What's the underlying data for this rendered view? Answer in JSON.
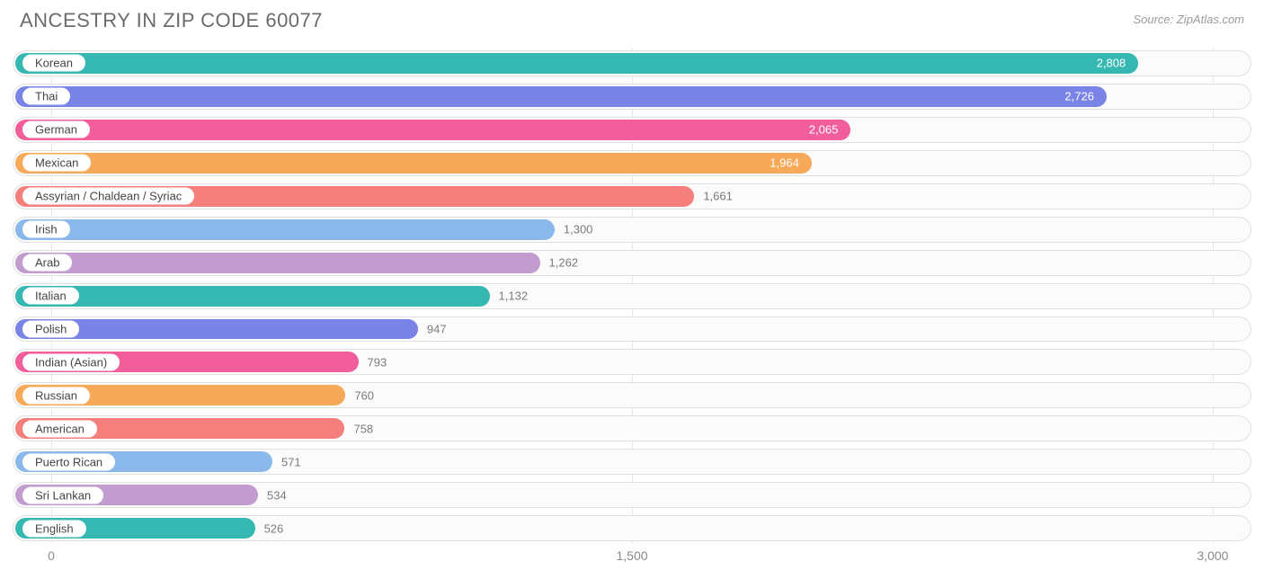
{
  "title": "ANCESTRY IN ZIP CODE 60077",
  "source": "Source: ZipAtlas.com",
  "chart": {
    "type": "bar",
    "orientation": "horizontal",
    "x_min": -100,
    "x_max": 3100,
    "ticks": [
      {
        "value": 0,
        "label": "0"
      },
      {
        "value": 1500,
        "label": "1,500"
      },
      {
        "value": 3000,
        "label": "3,000"
      }
    ],
    "gridline_color": "#e6e6e6",
    "track_border_color": "#e1e1e1",
    "track_background": "#fbfbfb",
    "title_color": "#6b6b6b",
    "title_fontsize": 22,
    "source_color": "#9a9a9a",
    "source_fontsize": 13,
    "axis_label_color": "#8a8a8a",
    "axis_label_fontsize": 14,
    "label_fontsize": 13,
    "label_color": "#444444",
    "value_inside_color": "#ffffff",
    "value_outside_color": "#7b7b7b",
    "data": [
      {
        "label": "Korean",
        "value": 2808,
        "display": "2,808",
        "color": "#35b8b2",
        "value_inside": true
      },
      {
        "label": "Thai",
        "value": 2726,
        "display": "2,726",
        "color": "#7a83e6",
        "value_inside": true
      },
      {
        "label": "German",
        "value": 2065,
        "display": "2,065",
        "color": "#f25d9c",
        "value_inside": true
      },
      {
        "label": "Mexican",
        "value": 1964,
        "display": "1,964",
        "color": "#f7a95a",
        "value_inside": true
      },
      {
        "label": "Assyrian / Chaldean / Syriac",
        "value": 1661,
        "display": "1,661",
        "color": "#f47f7c",
        "value_inside": false
      },
      {
        "label": "Irish",
        "value": 1300,
        "display": "1,300",
        "color": "#8ab8eb",
        "value_inside": false
      },
      {
        "label": "Arab",
        "value": 1262,
        "display": "1,262",
        "color": "#c29bcf",
        "value_inside": false
      },
      {
        "label": "Italian",
        "value": 1132,
        "display": "1,132",
        "color": "#35b8b2",
        "value_inside": false
      },
      {
        "label": "Polish",
        "value": 947,
        "display": "947",
        "color": "#7a83e6",
        "value_inside": false
      },
      {
        "label": "Indian (Asian)",
        "value": 793,
        "display": "793",
        "color": "#f25d9c",
        "value_inside": false
      },
      {
        "label": "Russian",
        "value": 760,
        "display": "760",
        "color": "#f7a95a",
        "value_inside": false
      },
      {
        "label": "American",
        "value": 758,
        "display": "758",
        "color": "#f47f7c",
        "value_inside": false
      },
      {
        "label": "Puerto Rican",
        "value": 571,
        "display": "571",
        "color": "#8ab8eb",
        "value_inside": false
      },
      {
        "label": "Sri Lankan",
        "value": 534,
        "display": "534",
        "color": "#c29bcf",
        "value_inside": false
      },
      {
        "label": "English",
        "value": 526,
        "display": "526",
        "color": "#35b8b2",
        "value_inside": false
      }
    ]
  }
}
